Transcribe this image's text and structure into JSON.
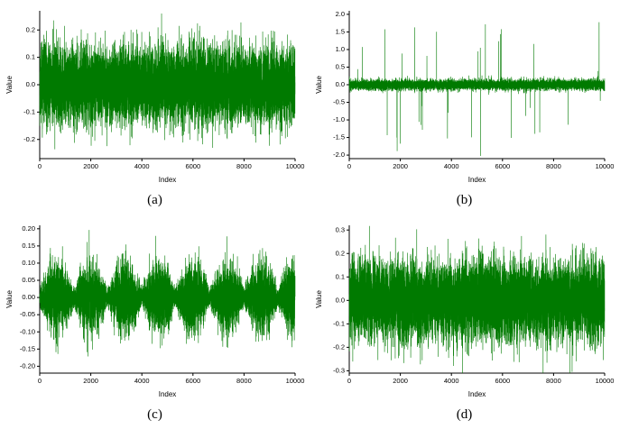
{
  "figure": {
    "background": "#ffffff",
    "line_color": "#007a00",
    "axis_color": "#000000",
    "tick_label_color": "#000000"
  },
  "chart_data": [
    {
      "type": "line",
      "caption": "(a)",
      "title": "",
      "xlabel": "Index",
      "ylabel": "Value",
      "xlim": [
        0,
        10000
      ],
      "ylim": [
        -0.27,
        0.27
      ],
      "xticks": [
        0,
        2000,
        4000,
        6000,
        8000,
        10000
      ],
      "xtick_labels": [
        "0",
        "2000",
        "4000",
        "6000",
        "8000",
        "10000"
      ],
      "yticks": [
        -0.2,
        -0.1,
        0.0,
        0.1,
        0.2
      ],
      "ytick_labels": [
        "-0.2",
        "-0.1",
        "0.0",
        "0.1",
        "0.2"
      ],
      "grid": false,
      "legend": "none",
      "n_points": 10000,
      "signal": {
        "kind": "white-noise",
        "std": 0.068,
        "spike_prob": 0,
        "spike_min": 0,
        "spike_max": 0,
        "envelope_lobes": 0,
        "envelope_floor": 1,
        "seed": 11
      }
    },
    {
      "type": "line",
      "caption": "(b)",
      "title": "",
      "xlabel": "Index",
      "ylabel": "Value",
      "xlim": [
        0,
        10000
      ],
      "ylim": [
        -2.1,
        2.1
      ],
      "xticks": [
        0,
        2000,
        4000,
        6000,
        8000,
        10000
      ],
      "xtick_labels": [
        "0",
        "2000",
        "4000",
        "6000",
        "8000",
        "10000"
      ],
      "yticks": [
        -2.0,
        -1.5,
        -1.0,
        -0.5,
        0.0,
        0.5,
        1.0,
        1.5,
        2.0
      ],
      "ytick_labels": [
        "-2.0",
        "-1.5",
        "-1.0",
        "-0.5",
        "0.0",
        "0.5",
        "1.0",
        "1.5",
        "2.0"
      ],
      "grid": false,
      "legend": "none",
      "n_points": 10000,
      "signal": {
        "kind": "spiky-noise",
        "std": 0.075,
        "spike_prob": 0.0045,
        "spike_min": 0.3,
        "spike_max": 2.0,
        "envelope_lobes": 0,
        "envelope_floor": 1,
        "seed": 22
      }
    },
    {
      "type": "line",
      "caption": "(c)",
      "title": "",
      "xlabel": "Index",
      "ylabel": "Value",
      "xlim": [
        0,
        10000
      ],
      "ylim": [
        -0.22,
        0.21
      ],
      "xticks": [
        0,
        2000,
        4000,
        6000,
        8000,
        10000
      ],
      "xtick_labels": [
        "0",
        "2000",
        "4000",
        "6000",
        "8000",
        "10000"
      ],
      "yticks": [
        -0.2,
        -0.15,
        -0.1,
        -0.05,
        0.0,
        0.05,
        0.1,
        0.15,
        0.2
      ],
      "ytick_labels": [
        "-0.20",
        "-0.15",
        "-0.10",
        "-0.05",
        "0.00",
        "0.05",
        "0.10",
        "0.15",
        "0.20"
      ],
      "grid": false,
      "legend": "none",
      "n_points": 10000,
      "signal": {
        "kind": "amplitude-modulated-noise",
        "std": 0.052,
        "spike_prob": 0,
        "spike_min": 0,
        "spike_max": 0,
        "envelope_lobes": 7.5,
        "envelope_floor": 0.22,
        "seed": 33
      }
    },
    {
      "type": "line",
      "caption": "(d)",
      "title": "",
      "xlabel": "Index",
      "ylabel": "Value",
      "xlim": [
        0,
        10000
      ],
      "ylim": [
        -0.31,
        0.32
      ],
      "xticks": [
        0,
        2000,
        4000,
        6000,
        8000,
        10000
      ],
      "xtick_labels": [
        "0",
        "2000",
        "4000",
        "6000",
        "8000",
        "10000"
      ],
      "yticks": [
        -0.3,
        -0.2,
        -0.1,
        0.0,
        0.1,
        0.2,
        0.3
      ],
      "ytick_labels": [
        "-0.3",
        "-0.2",
        "-0.1",
        "0.0",
        "0.1",
        "0.2",
        "0.3"
      ],
      "grid": false,
      "legend": "none",
      "n_points": 10000,
      "signal": {
        "kind": "white-noise",
        "std": 0.082,
        "spike_prob": 0.0008,
        "spike_min": 0.05,
        "spike_max": 0.18,
        "envelope_lobes": 0,
        "envelope_floor": 1,
        "seed": 44
      }
    }
  ]
}
